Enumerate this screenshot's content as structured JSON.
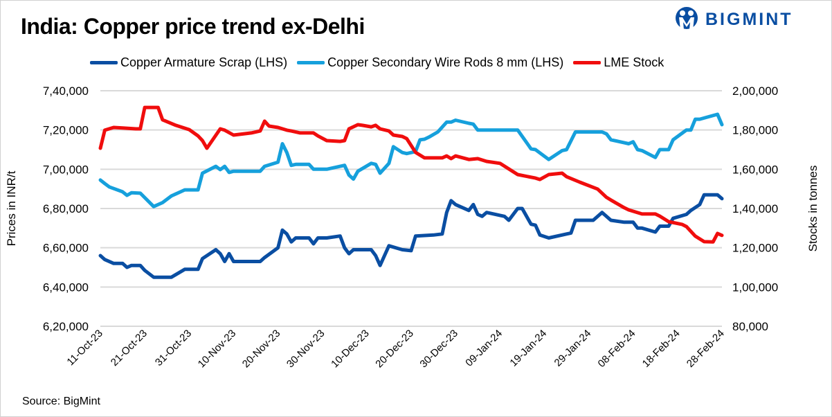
{
  "brand": {
    "name": "BIGMINT",
    "color": "#0a4ea2"
  },
  "source": "Source: BigMint",
  "chart_data": {
    "type": "line",
    "title": "India: Copper price trend ex-Delhi",
    "ylabel_left": "Prices in INR/t",
    "ylabel_right": "Stocks in tonnes",
    "xlabel": "",
    "xlim": [
      "2023-10-11",
      "2024-02-28"
    ],
    "ylim_left": [
      620000,
      740000
    ],
    "ylim_right": [
      80000,
      200000
    ],
    "grid": true,
    "legend": "top",
    "xtick_labels": [
      "11-Oct-23",
      "21-Oct-23",
      "31-Oct-23",
      "10-Nov-23",
      "20-Nov-23",
      "30-Nov-23",
      "10-Dec-23",
      "20-Dec-23",
      "30-Dec-23",
      "09-Jan-24",
      "19-Jan-24",
      "29-Jan-24",
      "08-Feb-24",
      "18-Feb-24",
      "28-Feb-24"
    ],
    "xtick_dates": [
      "2023-10-11",
      "2023-10-21",
      "2023-10-31",
      "2023-11-10",
      "2023-11-20",
      "2023-11-30",
      "2023-12-10",
      "2023-12-20",
      "2023-12-30",
      "2024-01-09",
      "2024-01-19",
      "2024-01-29",
      "2024-02-08",
      "2024-02-18",
      "2024-02-28"
    ],
    "ytick_labels_left": [
      "7,40,000",
      "7,20,000",
      "7,00,000",
      "6,80,000",
      "6,60,000",
      "6,40,000",
      "6,20,000"
    ],
    "ytick_values_left": [
      740000,
      720000,
      700000,
      680000,
      660000,
      640000,
      620000
    ],
    "ytick_labels_right": [
      "2,00,000",
      "1,80,000",
      "1,60,000",
      "1,40,000",
      "1,20,000",
      "1,00,000",
      "80,000"
    ],
    "series": [
      {
        "name": "Copper Armature Scrap (LHS)",
        "axis": "left",
        "color": "#0a4ea2",
        "points": [
          [
            "2023-10-11",
            656000
          ],
          [
            "2023-10-12",
            654000
          ],
          [
            "2023-10-14",
            652000
          ],
          [
            "2023-10-16",
            652000
          ],
          [
            "2023-10-17",
            650000
          ],
          [
            "2023-10-18",
            651000
          ],
          [
            "2023-10-20",
            651000
          ],
          [
            "2023-10-21",
            648500
          ],
          [
            "2023-10-23",
            645000
          ],
          [
            "2023-10-27",
            645000
          ],
          [
            "2023-10-30",
            649000
          ],
          [
            "2023-11-02",
            649000
          ],
          [
            "2023-11-03",
            654500
          ],
          [
            "2023-11-06",
            659000
          ],
          [
            "2023-11-07",
            657000
          ],
          [
            "2023-11-08",
            653000
          ],
          [
            "2023-11-09",
            657000
          ],
          [
            "2023-11-10",
            653000
          ],
          [
            "2023-11-16",
            653000
          ],
          [
            "2023-11-17",
            655000
          ],
          [
            "2023-11-20",
            660000
          ],
          [
            "2023-11-21",
            669000
          ],
          [
            "2023-11-22",
            667000
          ],
          [
            "2023-11-23",
            663000
          ],
          [
            "2023-11-24",
            665000
          ],
          [
            "2023-11-27",
            665000
          ],
          [
            "2023-11-28",
            662000
          ],
          [
            "2023-11-29",
            665000
          ],
          [
            "2023-12-01",
            665000
          ],
          [
            "2023-12-04",
            666000
          ],
          [
            "2023-12-05",
            660000
          ],
          [
            "2023-12-06",
            657000
          ],
          [
            "2023-12-07",
            659000
          ],
          [
            "2023-12-11",
            659000
          ],
          [
            "2023-12-12",
            656000
          ],
          [
            "2023-12-13",
            651000
          ],
          [
            "2023-12-14",
            656000
          ],
          [
            "2023-12-15",
            661000
          ],
          [
            "2023-12-18",
            659000
          ],
          [
            "2023-12-20",
            658500
          ],
          [
            "2023-12-21",
            666000
          ],
          [
            "2023-12-25",
            666500
          ],
          [
            "2023-12-27",
            667000
          ],
          [
            "2023-12-28",
            678000
          ],
          [
            "2023-12-29",
            684000
          ],
          [
            "2023-12-30",
            682000
          ],
          [
            "2024-01-02",
            679000
          ],
          [
            "2024-01-03",
            682000
          ],
          [
            "2024-01-04",
            677000
          ],
          [
            "2024-01-05",
            676000
          ],
          [
            "2024-01-06",
            678000
          ],
          [
            "2024-01-09",
            676500
          ],
          [
            "2024-01-10",
            676000
          ],
          [
            "2024-01-11",
            674000
          ],
          [
            "2024-01-13",
            680000
          ],
          [
            "2024-01-14",
            680000
          ],
          [
            "2024-01-16",
            672000
          ],
          [
            "2024-01-17",
            671500
          ],
          [
            "2024-01-18",
            666500
          ],
          [
            "2024-01-20",
            665000
          ],
          [
            "2024-01-24",
            667000
          ],
          [
            "2024-01-25",
            667500
          ],
          [
            "2024-01-26",
            674000
          ],
          [
            "2024-01-30",
            674000
          ],
          [
            "2024-02-01",
            678000
          ],
          [
            "2024-02-03",
            674000
          ],
          [
            "2024-02-06",
            673000
          ],
          [
            "2024-02-08",
            673000
          ],
          [
            "2024-02-09",
            670000
          ],
          [
            "2024-02-10",
            670000
          ],
          [
            "2024-02-13",
            668000
          ],
          [
            "2024-02-14",
            671000
          ],
          [
            "2024-02-16",
            671000
          ],
          [
            "2024-02-17",
            675000
          ],
          [
            "2024-02-20",
            677000
          ],
          [
            "2024-02-21",
            679000
          ],
          [
            "2024-02-23",
            682000
          ],
          [
            "2024-02-24",
            687000
          ],
          [
            "2024-02-27",
            687000
          ],
          [
            "2024-02-28",
            685000
          ]
        ]
      },
      {
        "name": "Copper Secondary Wire Rods 8 mm (LHS)",
        "axis": "left",
        "color": "#16a0dc",
        "points": [
          [
            "2023-10-11",
            694500
          ],
          [
            "2023-10-12",
            692700
          ],
          [
            "2023-10-13",
            691000
          ],
          [
            "2023-10-16",
            688500
          ],
          [
            "2023-10-17",
            686700
          ],
          [
            "2023-10-18",
            688000
          ],
          [
            "2023-10-20",
            687800
          ],
          [
            "2023-10-23",
            681000
          ],
          [
            "2023-10-25",
            683000
          ],
          [
            "2023-10-27",
            686400
          ],
          [
            "2023-10-30",
            689500
          ],
          [
            "2023-11-02",
            689500
          ],
          [
            "2023-11-03",
            698000
          ],
          [
            "2023-11-06",
            701500
          ],
          [
            "2023-11-07",
            699800
          ],
          [
            "2023-11-08",
            701500
          ],
          [
            "2023-11-09",
            698400
          ],
          [
            "2023-11-10",
            699000
          ],
          [
            "2023-11-16",
            699000
          ],
          [
            "2023-11-17",
            701500
          ],
          [
            "2023-11-20",
            703600
          ],
          [
            "2023-11-21",
            713000
          ],
          [
            "2023-11-22",
            708500
          ],
          [
            "2023-11-23",
            702000
          ],
          [
            "2023-11-24",
            702500
          ],
          [
            "2023-11-27",
            702500
          ],
          [
            "2023-11-28",
            700000
          ],
          [
            "2023-12-01",
            700000
          ],
          [
            "2023-12-05",
            702000
          ],
          [
            "2023-12-06",
            697000
          ],
          [
            "2023-12-07",
            695000
          ],
          [
            "2023-12-08",
            699000
          ],
          [
            "2023-12-11",
            703000
          ],
          [
            "2023-12-12",
            702500
          ],
          [
            "2023-12-13",
            698000
          ],
          [
            "2023-12-15",
            703000
          ],
          [
            "2023-12-16",
            711500
          ],
          [
            "2023-12-18",
            708500
          ],
          [
            "2023-12-19",
            708000
          ],
          [
            "2023-12-21",
            709000
          ],
          [
            "2023-12-22",
            715000
          ],
          [
            "2023-12-23",
            715300
          ],
          [
            "2023-12-24",
            716400
          ],
          [
            "2023-12-26",
            719000
          ],
          [
            "2023-12-28",
            724000
          ],
          [
            "2023-12-29",
            724000
          ],
          [
            "2023-12-30",
            725000
          ],
          [
            "2024-01-02",
            723400
          ],
          [
            "2024-01-03",
            723000
          ],
          [
            "2024-01-04",
            720000
          ],
          [
            "2024-01-13",
            720000
          ],
          [
            "2024-01-16",
            710400
          ],
          [
            "2024-01-17",
            710000
          ],
          [
            "2024-01-20",
            705000
          ],
          [
            "2024-01-23",
            709500
          ],
          [
            "2024-01-24",
            710000
          ],
          [
            "2024-01-26",
            719000
          ],
          [
            "2024-02-01",
            719000
          ],
          [
            "2024-02-02",
            718000
          ],
          [
            "2024-02-03",
            715000
          ],
          [
            "2024-02-06",
            713500
          ],
          [
            "2024-02-07",
            713000
          ],
          [
            "2024-02-08",
            714000
          ],
          [
            "2024-02-09",
            710000
          ],
          [
            "2024-02-10",
            709500
          ],
          [
            "2024-02-13",
            706000
          ],
          [
            "2024-02-14",
            710000
          ],
          [
            "2024-02-16",
            710000
          ],
          [
            "2024-02-17",
            715000
          ],
          [
            "2024-02-20",
            720000
          ],
          [
            "2024-02-21",
            720000
          ],
          [
            "2024-02-22",
            725500
          ],
          [
            "2024-02-23",
            725500
          ],
          [
            "2024-02-27",
            728000
          ],
          [
            "2024-02-28",
            722700
          ]
        ]
      },
      {
        "name": "LME Stock",
        "axis": "right",
        "color": "#f00d0d",
        "points": [
          [
            "2023-10-11",
            170700
          ],
          [
            "2023-10-12",
            179900
          ],
          [
            "2023-10-14",
            181300
          ],
          [
            "2023-10-16",
            181000
          ],
          [
            "2023-10-19",
            180600
          ],
          [
            "2023-10-20",
            180600
          ],
          [
            "2023-10-21",
            191500
          ],
          [
            "2023-10-24",
            191500
          ],
          [
            "2023-10-25",
            185200
          ],
          [
            "2023-10-28",
            182400
          ],
          [
            "2023-10-31",
            180200
          ],
          [
            "2023-11-02",
            177000
          ],
          [
            "2023-11-03",
            174600
          ],
          [
            "2023-11-04",
            170700
          ],
          [
            "2023-11-07",
            180600
          ],
          [
            "2023-11-08",
            179900
          ],
          [
            "2023-11-10",
            177400
          ],
          [
            "2023-11-14",
            178500
          ],
          [
            "2023-11-16",
            179500
          ],
          [
            "2023-11-17",
            184500
          ],
          [
            "2023-11-18",
            182000
          ],
          [
            "2023-11-20",
            181300
          ],
          [
            "2023-11-22",
            179900
          ],
          [
            "2023-11-23",
            179500
          ],
          [
            "2023-11-25",
            178500
          ],
          [
            "2023-11-28",
            178500
          ],
          [
            "2023-11-29",
            177000
          ],
          [
            "2023-12-01",
            174600
          ],
          [
            "2023-12-04",
            174200
          ],
          [
            "2023-12-05",
            174600
          ],
          [
            "2023-12-06",
            180600
          ],
          [
            "2023-12-08",
            182700
          ],
          [
            "2023-12-09",
            182400
          ],
          [
            "2023-12-11",
            181600
          ],
          [
            "2023-12-12",
            182400
          ],
          [
            "2023-12-13",
            180600
          ],
          [
            "2023-12-15",
            179500
          ],
          [
            "2023-12-16",
            177400
          ],
          [
            "2023-12-18",
            176700
          ],
          [
            "2023-12-19",
            175600
          ],
          [
            "2023-12-21",
            168600
          ],
          [
            "2023-12-23",
            165800
          ],
          [
            "2023-12-27",
            165800
          ],
          [
            "2023-12-28",
            166800
          ],
          [
            "2023-12-29",
            165400
          ],
          [
            "2023-12-30",
            166800
          ],
          [
            "2024-01-02",
            165000
          ],
          [
            "2024-01-04",
            165400
          ],
          [
            "2024-01-06",
            164000
          ],
          [
            "2024-01-09",
            163000
          ],
          [
            "2024-01-13",
            157300
          ],
          [
            "2024-01-17",
            155500
          ],
          [
            "2024-01-18",
            154800
          ],
          [
            "2024-01-20",
            157300
          ],
          [
            "2024-01-23",
            158000
          ],
          [
            "2024-01-24",
            156200
          ],
          [
            "2024-01-27",
            153400
          ],
          [
            "2024-01-31",
            149900
          ],
          [
            "2024-02-02",
            145700
          ],
          [
            "2024-02-03",
            144300
          ],
          [
            "2024-02-06",
            140400
          ],
          [
            "2024-02-07",
            139300
          ],
          [
            "2024-02-10",
            137200
          ],
          [
            "2024-02-13",
            137200
          ],
          [
            "2024-02-14",
            136100
          ],
          [
            "2024-02-16",
            133300
          ],
          [
            "2024-02-19",
            131900
          ],
          [
            "2024-02-20",
            130800
          ],
          [
            "2024-02-22",
            125900
          ],
          [
            "2024-02-24",
            123100
          ],
          [
            "2024-02-26",
            123000
          ],
          [
            "2024-02-27",
            127300
          ],
          [
            "2024-02-28",
            126300
          ]
        ]
      }
    ]
  }
}
